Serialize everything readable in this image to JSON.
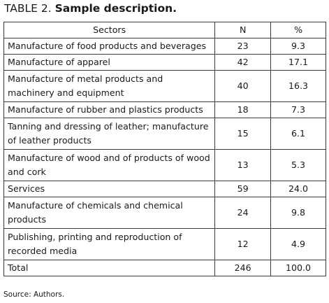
{
  "caption": {
    "label": "TABLE 2.",
    "title": "Sample description."
  },
  "table": {
    "headers": [
      "Sectors",
      "N",
      "%"
    ],
    "rows": [
      {
        "sector": "Manufacture of food products and beverages",
        "n": "23",
        "pct": "9.3"
      },
      {
        "sector": "Manufacture of apparel",
        "n": "42",
        "pct": "17.1"
      },
      {
        "sector": "Manufacture of metal products and machinery and equipment",
        "n": "40",
        "pct": "16.3"
      },
      {
        "sector": "Manufacture of rubber and plastics products",
        "n": "18",
        "pct": "7.3"
      },
      {
        "sector": "Tanning and dressing of leather; manufacture of leather products",
        "n": "15",
        "pct": "6.1"
      },
      {
        "sector": "Manufacture of wood and of products of wood and cork",
        "n": "13",
        "pct": "5.3"
      },
      {
        "sector": "Services",
        "n": "59",
        "pct": "24.0"
      },
      {
        "sector": "Manufacture of chemicals and chemical products",
        "n": "24",
        "pct": "9.8"
      },
      {
        "sector": "Publishing, printing and reproduction of recorded media",
        "n": "12",
        "pct": "4.9"
      },
      {
        "sector": "Total",
        "n": "246",
        "pct": "100.0"
      }
    ]
  },
  "source": "Source: Authors."
}
